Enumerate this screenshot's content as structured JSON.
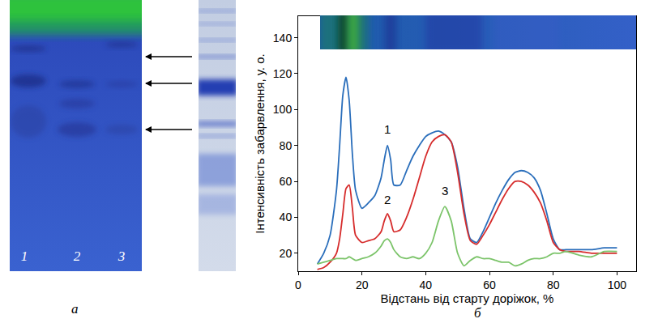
{
  "chart_data": {
    "type": "line",
    "y_label": "Інтенсивність забарвлення, у. о.",
    "x_label": "Відстань від старту доріжок, %",
    "x": [
      6,
      8,
      10,
      12,
      13,
      14,
      15,
      16,
      17,
      18,
      20,
      22,
      24,
      26,
      27,
      28,
      29,
      30,
      32,
      34,
      36,
      38,
      40,
      42,
      44,
      46,
      48,
      50,
      52,
      54,
      56,
      58,
      60,
      62,
      64,
      66,
      68,
      70,
      72,
      74,
      76,
      78,
      80,
      82,
      84,
      88,
      92,
      96,
      100
    ],
    "series": [
      {
        "name": "1",
        "color": "#2a6ebb",
        "values": [
          14,
          20,
          30,
          55,
          80,
          108,
          118,
          105,
          75,
          55,
          45,
          48,
          52,
          62,
          72,
          80,
          72,
          58,
          58,
          66,
          74,
          80,
          85,
          87,
          88,
          86,
          82,
          68,
          45,
          28,
          26,
          32,
          40,
          48,
          55,
          61,
          65,
          66,
          65,
          62,
          55,
          42,
          28,
          22,
          22,
          22,
          22,
          23,
          23
        ]
      },
      {
        "name": "2",
        "color": "#d62c2c",
        "values": [
          11,
          12,
          15,
          20,
          28,
          42,
          56,
          58,
          45,
          30,
          26,
          27,
          28,
          32,
          38,
          42,
          38,
          32,
          33,
          40,
          50,
          62,
          74,
          82,
          85,
          86,
          82,
          65,
          42,
          27,
          25,
          30,
          36,
          43,
          50,
          56,
          60,
          60,
          58,
          54,
          48,
          38,
          26,
          22,
          21,
          21,
          20,
          20,
          20
        ]
      },
      {
        "name": "3",
        "color": "#7cc46a",
        "values": [
          14,
          15,
          16,
          17,
          17,
          17,
          17,
          18,
          17,
          16,
          17,
          18,
          20,
          24,
          27,
          28,
          26,
          22,
          18,
          17,
          18,
          17,
          20,
          26,
          38,
          46,
          38,
          20,
          13,
          16,
          18,
          17,
          17,
          16,
          15,
          15,
          13,
          14,
          16,
          17,
          17,
          18,
          20,
          20,
          21,
          19,
          18,
          21,
          21
        ]
      }
    ],
    "xlim": [
      0,
      106
    ],
    "xticks": [
      0,
      20,
      40,
      60,
      80,
      100
    ],
    "ylim": [
      10,
      152
    ],
    "yticks": [
      20,
      40,
      60,
      80,
      100,
      120,
      140
    ],
    "grid": false
  },
  "panel_letters": [
    "а",
    "б"
  ],
  "gel_lane_labels": [
    "1",
    "2",
    "3"
  ]
}
